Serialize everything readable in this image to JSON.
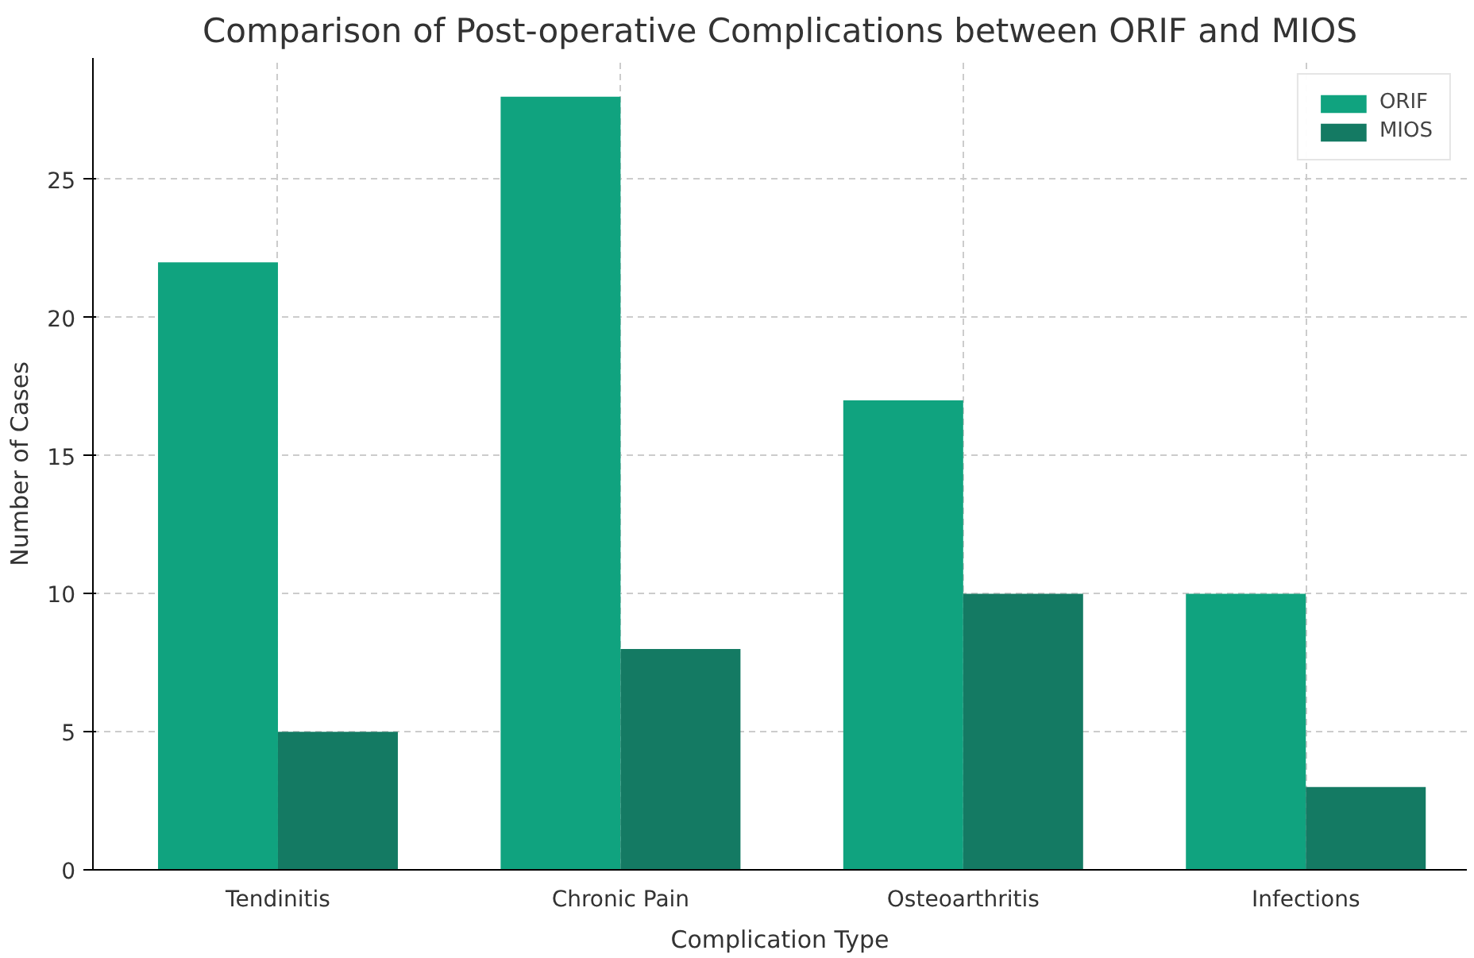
{
  "chart_data": {
    "type": "bar",
    "title": "Comparison of Post-operative Complications between ORIF and MIOS",
    "xlabel": "Complication Type",
    "ylabel": "Number of Cases",
    "categories": [
      "Tendinitis",
      "Chronic Pain",
      "Osteoarthritis",
      "Infections"
    ],
    "series": [
      {
        "name": "ORIF",
        "color": "#10a37f",
        "values": [
          22,
          28,
          17,
          10
        ]
      },
      {
        "name": "MIOS",
        "color": "#147a63",
        "values": [
          5,
          8,
          10,
          3
        ]
      }
    ],
    "ylim": [
      0,
      29.4
    ],
    "yticks": [
      0,
      5,
      10,
      15,
      20,
      25
    ],
    "grid": true,
    "legend": "top right"
  }
}
